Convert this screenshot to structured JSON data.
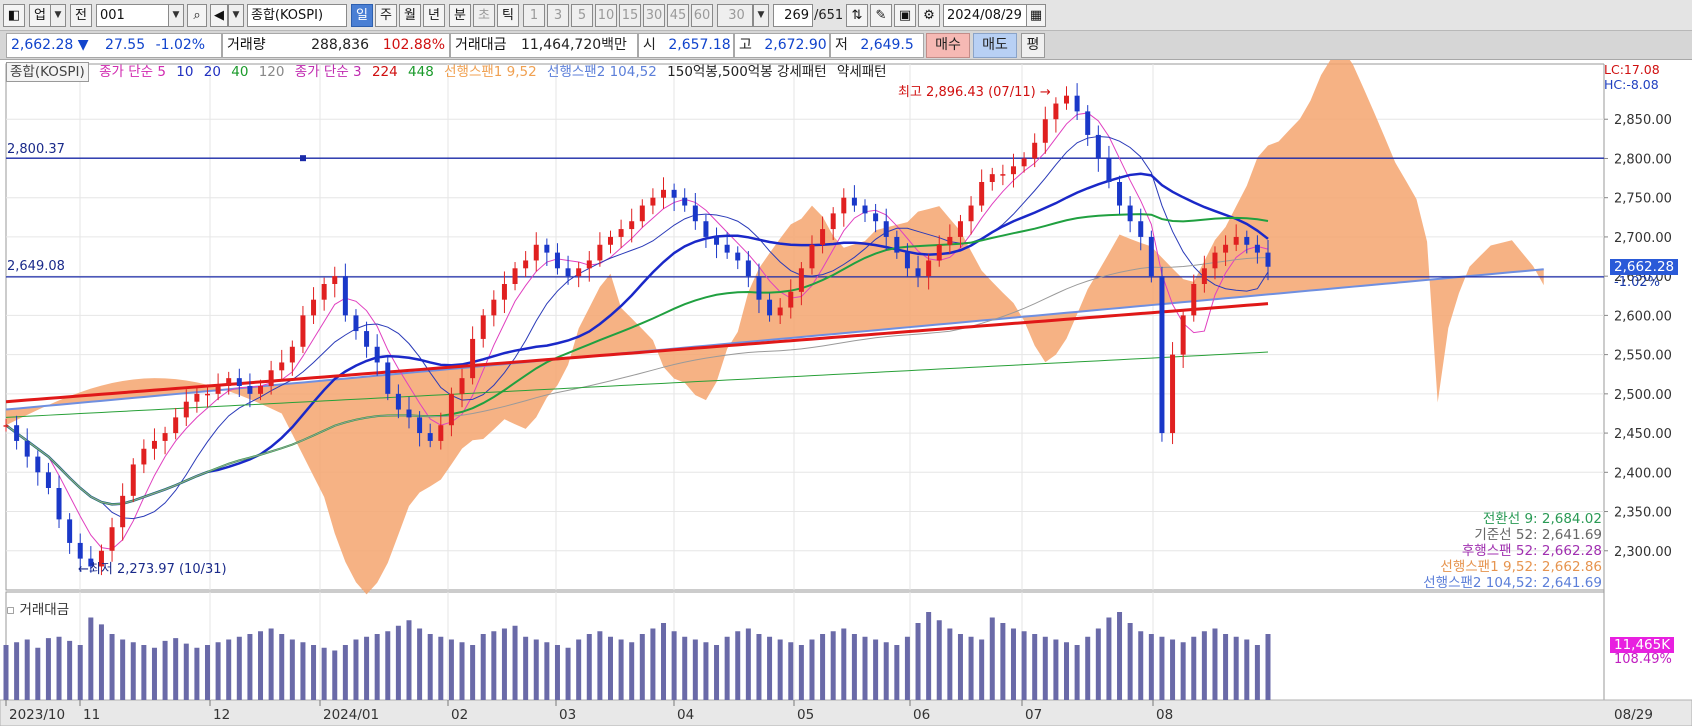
{
  "toolbar": {
    "market": "업",
    "period_mode": "전",
    "code": "001",
    "name": "종합(KOSPI)",
    "periods": [
      "일",
      "주",
      "월",
      "년"
    ],
    "active_period": "일",
    "intraday": [
      "분",
      "초",
      "틱"
    ],
    "intervals": [
      "1",
      "3",
      "5",
      "10",
      "15",
      "30",
      "45",
      "60"
    ],
    "interval_value": "30",
    "count": "269",
    "total": "/651",
    "date": "2024/08/29"
  },
  "quote": {
    "price": "2,662.28",
    "arrow": "▼",
    "change": "27.55",
    "change_pct": "-1.02%",
    "volume_label": "거래량",
    "volume": "288,836",
    "volume_pct": "102.88%",
    "amount_label": "거래대금",
    "amount": "11,464,720백만",
    "open_label": "시",
    "open": "2,657.18",
    "high_label": "고",
    "high": "2,672.90",
    "low_label": "저",
    "low": "2,649.5",
    "buy": "매수",
    "sell": "매도",
    "eval": "평"
  },
  "legend": {
    "main": "종합(KOSPI)",
    "ma_label": "종가 단순 5",
    "ma_10": "10",
    "ma_20": "20",
    "ma_40": "40",
    "ma_120": "120",
    "ma2_label": "종가 단순 3",
    "ma2_224": "224",
    "ma2_448": "448",
    "span1": "선행스팬1 9,52",
    "span2": "선행스팬2 104,52",
    "pattern": "150억봉,500억봉 강세패턴",
    "pattern2": "약세패턴"
  },
  "annotations": {
    "high": "최고 2,896.43 (07/11)",
    "low": "최저 2,273.97 (10/31)",
    "line_upper": "2,800.37",
    "line_lower": "2,649.08",
    "lc": "LC:17.08",
    "hc": "HC:-8.08",
    "price_badge": "2,662.28",
    "price_pct": "-1.02%",
    "vol_badge": "11,465K",
    "vol_pct": "108.49%"
  },
  "ichimoku": [
    {
      "label": "전환선 9: 2,684.02",
      "color": "#2a9a55"
    },
    {
      "label": "기준선 52: 2,641.69",
      "color": "#666666"
    },
    {
      "label": "후행스팬 52: 2,662.28",
      "color": "#a030b0"
    },
    {
      "label": "선행스팬1 9,52: 2,662.86",
      "color": "#e6944f"
    },
    {
      "label": "선행스팬2 104,52: 2,641.69",
      "color": "#5c7fd9"
    }
  ],
  "volume_panel": {
    "title": "거래대금"
  },
  "chart_data": {
    "type": "candlestick",
    "title": "종합(KOSPI)",
    "ylim": [
      2250,
      2900
    ],
    "y_ticks": [
      2300,
      2350,
      2400,
      2450,
      2500,
      2550,
      2600,
      2650,
      2700,
      2750,
      2800,
      2850
    ],
    "y_tick_labels": [
      "2,300.00",
      "2,350.00",
      "2,400.00",
      "2,450.00",
      "2,500.00",
      "2,550.00",
      "2,600.00",
      "2,650.00",
      "2,700.00",
      "2,750.00",
      "2,800.00",
      "2,850.00"
    ],
    "x_labels": [
      "2023/10",
      "11",
      "12",
      "2024/01",
      "02",
      "03",
      "04",
      "05",
      "06",
      "07",
      "08"
    ],
    "x_end_label": "08/29",
    "close_series": [
      2460,
      2440,
      2420,
      2400,
      2380,
      2340,
      2310,
      2290,
      2280,
      2300,
      2330,
      2370,
      2410,
      2430,
      2440,
      2450,
      2470,
      2490,
      2500,
      2500,
      2510,
      2520,
      2510,
      2500,
      2510,
      2530,
      2540,
      2560,
      2600,
      2620,
      2640,
      2650,
      2600,
      2580,
      2560,
      2540,
      2500,
      2480,
      2470,
      2450,
      2440,
      2460,
      2500,
      2520,
      2570,
      2600,
      2620,
      2640,
      2660,
      2670,
      2690,
      2680,
      2660,
      2650,
      2660,
      2670,
      2690,
      2700,
      2710,
      2720,
      2740,
      2750,
      2760,
      2750,
      2740,
      2720,
      2700,
      2690,
      2680,
      2670,
      2650,
      2620,
      2600,
      2610,
      2630,
      2660,
      2690,
      2710,
      2730,
      2750,
      2740,
      2730,
      2720,
      2700,
      2680,
      2660,
      2650,
      2670,
      2690,
      2700,
      2720,
      2740,
      2770,
      2780,
      2780,
      2790,
      2800,
      2820,
      2850,
      2870,
      2880,
      2860,
      2830,
      2800,
      2770,
      2740,
      2720,
      2700,
      2650,
      2450,
      2550,
      2600,
      2640,
      2660,
      2680,
      2690,
      2700,
      2690,
      2680,
      2662
    ],
    "volume_series": [
      40,
      42,
      44,
      38,
      45,
      46,
      43,
      40,
      60,
      55,
      48,
      44,
      42,
      40,
      38,
      43,
      45,
      41,
      38,
      40,
      42,
      44,
      46,
      48,
      50,
      52,
      48,
      44,
      42,
      40,
      38,
      36,
      40,
      44,
      46,
      48,
      50,
      54,
      58,
      52,
      48,
      46,
      44,
      42,
      40,
      48,
      50,
      52,
      54,
      46,
      44,
      42,
      40,
      38,
      44,
      48,
      50,
      46,
      44,
      42,
      48,
      52,
      56,
      50,
      46,
      44,
      42,
      40,
      46,
      50,
      52,
      48,
      46,
      44,
      42,
      40,
      44,
      48,
      50,
      52,
      48,
      46,
      44,
      42,
      40,
      46,
      56,
      64,
      58,
      52,
      48,
      46,
      44,
      60,
      56,
      52,
      50,
      48,
      46,
      44,
      42,
      40,
      46,
      52,
      60,
      64,
      56,
      50,
      48,
      46,
      44,
      42,
      46,
      50,
      52,
      48,
      46,
      44,
      40,
      48
    ]
  }
}
